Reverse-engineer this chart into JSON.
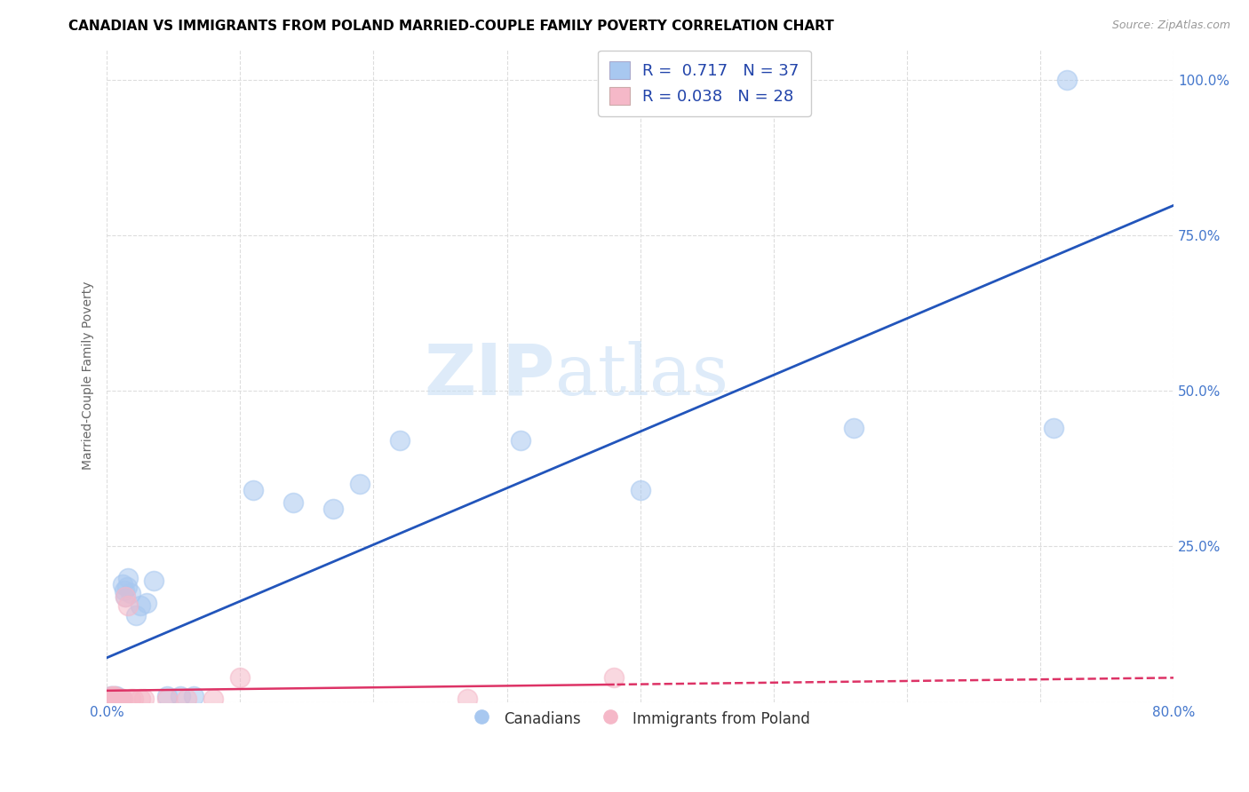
{
  "title": "CANADIAN VS IMMIGRANTS FROM POLAND MARRIED-COUPLE FAMILY POVERTY CORRELATION CHART",
  "source": "Source: ZipAtlas.com",
  "ylabel": "Married-Couple Family Poverty",
  "watermark_text": "ZIPatlas",
  "legend_label1": "R =  0.717   N = 37",
  "legend_label2": "R = 0.038   N = 28",
  "legend_bottom_label1": "Canadians",
  "legend_bottom_label2": "Immigrants from Poland",
  "blue_color": "#a8c8f0",
  "pink_color": "#f5b8c8",
  "line_blue": "#2255bb",
  "line_pink": "#dd3366",
  "canadians_x": [
    0.002,
    0.003,
    0.003,
    0.004,
    0.004,
    0.005,
    0.006,
    0.006,
    0.007,
    0.007,
    0.008,
    0.009,
    0.01,
    0.011,
    0.012,
    0.013,
    0.014,
    0.015,
    0.016,
    0.018,
    0.022,
    0.025,
    0.03,
    0.035,
    0.045,
    0.055,
    0.065,
    0.11,
    0.14,
    0.17,
    0.19,
    0.22,
    0.31,
    0.4,
    0.56,
    0.71,
    0.72
  ],
  "canadians_y": [
    0.005,
    0.005,
    0.01,
    0.005,
    0.01,
    0.005,
    0.005,
    0.01,
    0.005,
    0.01,
    0.005,
    0.005,
    0.005,
    0.005,
    0.19,
    0.18,
    0.17,
    0.185,
    0.2,
    0.175,
    0.14,
    0.155,
    0.16,
    0.195,
    0.01,
    0.01,
    0.01,
    0.34,
    0.32,
    0.31,
    0.35,
    0.42,
    0.42,
    0.34,
    0.44,
    0.44,
    1.0
  ],
  "poland_x": [
    0.002,
    0.003,
    0.003,
    0.004,
    0.004,
    0.005,
    0.005,
    0.006,
    0.006,
    0.007,
    0.007,
    0.008,
    0.009,
    0.01,
    0.011,
    0.012,
    0.014,
    0.016,
    0.018,
    0.02,
    0.025,
    0.028,
    0.045,
    0.06,
    0.08,
    0.1,
    0.27,
    0.38
  ],
  "poland_y": [
    0.005,
    0.005,
    0.01,
    0.005,
    0.005,
    0.005,
    0.01,
    0.005,
    0.01,
    0.005,
    0.005,
    0.005,
    0.005,
    0.005,
    0.005,
    0.005,
    0.17,
    0.155,
    0.005,
    0.005,
    0.005,
    0.005,
    0.005,
    0.005,
    0.005,
    0.04,
    0.005,
    0.04
  ],
  "xlim": [
    0.0,
    0.8
  ],
  "ylim": [
    0.0,
    1.05
  ],
  "x_ticks": [
    0.0,
    0.1,
    0.2,
    0.3,
    0.4,
    0.5,
    0.6,
    0.7,
    0.8
  ],
  "x_tick_labels": [
    "0.0%",
    "",
    "",
    "",
    "",
    "",
    "",
    "",
    "80.0%"
  ],
  "y_ticks": [
    0.0,
    0.25,
    0.5,
    0.75,
    1.0
  ],
  "y_tick_labels": [
    "",
    "25.0%",
    "50.0%",
    "75.0%",
    "100.0%"
  ],
  "grid_color": "#dddddd",
  "title_fontsize": 11,
  "tick_fontsize": 11,
  "source_fontsize": 9
}
